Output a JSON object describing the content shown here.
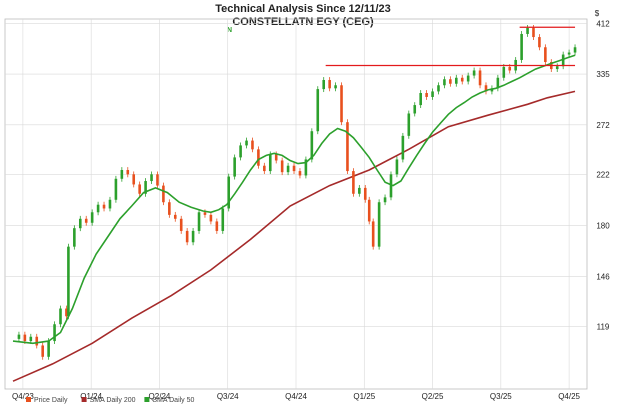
{
  "chart_data": {
    "type": "line",
    "title": "Technical Analysis Since 12/11/23",
    "subtitle": "CONSTELLATN EGY (CEG)",
    "currency_symbol": "$",
    "marker_label": "N",
    "y_scale": "log",
    "ylim": [
      92,
      420
    ],
    "yticks": [
      119,
      146,
      180,
      222,
      272,
      335,
      412
    ],
    "x_tick_labels": [
      "Q4/23",
      "Q1/24",
      "Q2/24",
      "Q3/24",
      "Q4/24",
      "Q1/25",
      "Q2/25",
      "Q3/25",
      "Q4/25"
    ],
    "grid": true,
    "legend": {
      "placement": "bottom-left",
      "items": [
        {
          "name": "Price Daily",
          "color": "#e8501e"
        },
        {
          "name": "SMA Daily 200",
          "color": "#a52a2a"
        },
        {
          "name": "SMA Daily 50",
          "color": "#2ca02c"
        }
      ]
    },
    "colors": {
      "up_candle": "#2ca02c",
      "down_candle": "#e8501e",
      "sma200": "#a52a2a",
      "sma50": "#2ca02c",
      "resistance": "#e31a1c",
      "grid": "#d9d9d9"
    },
    "price_series": {
      "name": "Price Daily",
      "points": [
        [
          0,
          113
        ],
        [
          3,
          115
        ],
        [
          6,
          112
        ],
        [
          9,
          114
        ],
        [
          12,
          110
        ],
        [
          15,
          105
        ],
        [
          18,
          112
        ],
        [
          21,
          120
        ],
        [
          24,
          128
        ],
        [
          27,
          124
        ],
        [
          28,
          165
        ],
        [
          31,
          178
        ],
        [
          34,
          185
        ],
        [
          37,
          182
        ],
        [
          40,
          190
        ],
        [
          43,
          196
        ],
        [
          46,
          193
        ],
        [
          49,
          200
        ],
        [
          52,
          218
        ],
        [
          55,
          226
        ],
        [
          58,
          222
        ],
        [
          61,
          213
        ],
        [
          64,
          205
        ],
        [
          67,
          216
        ],
        [
          70,
          222
        ],
        [
          73,
          212
        ],
        [
          76,
          198
        ],
        [
          79,
          188
        ],
        [
          82,
          185
        ],
        [
          85,
          176
        ],
        [
          88,
          168
        ],
        [
          91,
          176
        ],
        [
          94,
          190
        ],
        [
          97,
          188
        ],
        [
          100,
          183
        ],
        [
          103,
          176
        ],
        [
          106,
          193
        ],
        [
          109,
          220
        ],
        [
          112,
          238
        ],
        [
          115,
          250
        ],
        [
          118,
          255
        ],
        [
          121,
          246
        ],
        [
          124,
          230
        ],
        [
          127,
          225
        ],
        [
          130,
          241
        ],
        [
          133,
          235
        ],
        [
          136,
          224
        ],
        [
          139,
          230
        ],
        [
          142,
          225
        ],
        [
          145,
          221
        ],
        [
          148,
          236
        ],
        [
          151,
          265
        ],
        [
          154,
          315
        ],
        [
          157,
          327
        ],
        [
          160,
          316
        ],
        [
          163,
          320
        ],
        [
          166,
          275
        ],
        [
          169,
          225
        ],
        [
          172,
          205
        ],
        [
          175,
          210
        ],
        [
          178,
          200
        ],
        [
          180,
          183
        ],
        [
          182,
          165
        ],
        [
          185,
          198
        ],
        [
          188,
          202
        ],
        [
          191,
          222
        ],
        [
          194,
          236
        ],
        [
          197,
          260
        ],
        [
          200,
          285
        ],
        [
          203,
          295
        ],
        [
          206,
          310
        ],
        [
          209,
          305
        ],
        [
          212,
          312
        ],
        [
          215,
          320
        ],
        [
          218,
          328
        ],
        [
          221,
          322
        ],
        [
          224,
          330
        ],
        [
          227,
          325
        ],
        [
          230,
          333
        ],
        [
          233,
          340
        ],
        [
          236,
          320
        ],
        [
          239,
          312
        ],
        [
          242,
          316
        ],
        [
          245,
          330
        ],
        [
          248,
          345
        ],
        [
          251,
          340
        ],
        [
          254,
          355
        ],
        [
          257,
          395
        ],
        [
          260,
          405
        ],
        [
          263,
          390
        ],
        [
          266,
          374
        ],
        [
          269,
          352
        ],
        [
          272,
          342
        ],
        [
          275,
          346
        ],
        [
          278,
          363
        ],
        [
          281,
          366
        ],
        [
          284,
          374
        ]
      ]
    },
    "sma50_series": {
      "name": "SMA Daily 50",
      "points": [
        [
          0,
          112
        ],
        [
          10,
          111
        ],
        [
          18,
          112
        ],
        [
          24,
          116
        ],
        [
          30,
          128
        ],
        [
          36,
          145
        ],
        [
          42,
          160
        ],
        [
          48,
          172
        ],
        [
          54,
          185
        ],
        [
          60,
          195
        ],
        [
          66,
          206
        ],
        [
          72,
          210
        ],
        [
          78,
          206
        ],
        [
          84,
          198
        ],
        [
          90,
          194
        ],
        [
          96,
          191
        ],
        [
          100,
          190
        ],
        [
          104,
          192
        ],
        [
          108,
          196
        ],
        [
          112,
          205
        ],
        [
          116,
          215
        ],
        [
          120,
          226
        ],
        [
          124,
          236
        ],
        [
          128,
          240
        ],
        [
          132,
          242
        ],
        [
          136,
          240
        ],
        [
          140,
          235
        ],
        [
          144,
          232
        ],
        [
          148,
          233
        ],
        [
          152,
          240
        ],
        [
          156,
          252
        ],
        [
          160,
          262
        ],
        [
          164,
          268
        ],
        [
          168,
          265
        ],
        [
          172,
          258
        ],
        [
          176,
          248
        ],
        [
          180,
          238
        ],
        [
          184,
          226
        ],
        [
          188,
          215
        ],
        [
          192,
          212
        ],
        [
          196,
          216
        ],
        [
          200,
          228
        ],
        [
          204,
          240
        ],
        [
          208,
          252
        ],
        [
          212,
          264
        ],
        [
          216,
          274
        ],
        [
          220,
          284
        ],
        [
          224,
          292
        ],
        [
          228,
          298
        ],
        [
          232,
          305
        ],
        [
          236,
          310
        ],
        [
          240,
          314
        ],
        [
          244,
          316
        ],
        [
          248,
          320
        ],
        [
          252,
          325
        ],
        [
          256,
          330
        ],
        [
          260,
          336
        ],
        [
          264,
          342
        ],
        [
          268,
          346
        ],
        [
          272,
          350
        ],
        [
          276,
          354
        ],
        [
          280,
          358
        ],
        [
          284,
          362
        ]
      ]
    },
    "sma200_series": {
      "name": "SMA Daily 200",
      "points": [
        [
          0,
          95
        ],
        [
          20,
          102
        ],
        [
          40,
          111
        ],
        [
          60,
          123
        ],
        [
          80,
          135
        ],
        [
          100,
          150
        ],
        [
          120,
          170
        ],
        [
          140,
          195
        ],
        [
          160,
          212
        ],
        [
          180,
          226
        ],
        [
          200,
          246
        ],
        [
          220,
          270
        ],
        [
          240,
          283
        ],
        [
          260,
          296
        ],
        [
          270,
          304
        ],
        [
          284,
          312
        ]
      ]
    },
    "resistance_lines": [
      {
        "x_start": 158,
        "x_end": 284,
        "value": 347
      },
      {
        "x_start": 256,
        "x_end": 284,
        "value": 406
      }
    ],
    "x_range": [
      0,
      286
    ]
  }
}
